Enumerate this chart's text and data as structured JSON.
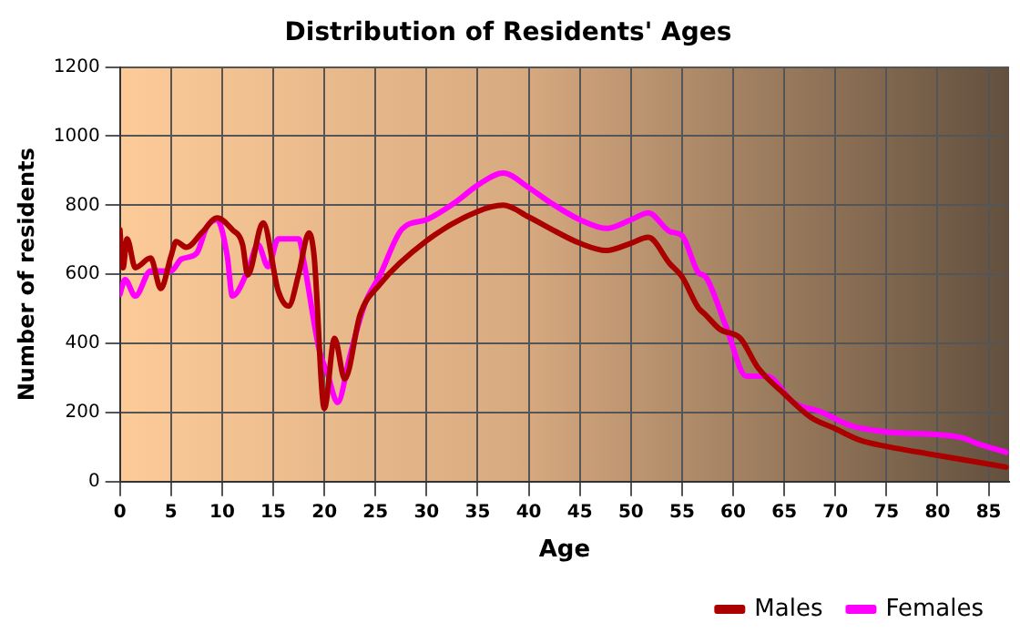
{
  "chart_data": {
    "type": "line",
    "title": "Distribution of Residents' Ages",
    "xlabel": "Age",
    "ylabel": "Number of residents",
    "xlim": [
      0,
      87
    ],
    "xticks": [
      0,
      5,
      10,
      15,
      20,
      25,
      30,
      35,
      40,
      45,
      50,
      55,
      60,
      65,
      70,
      75,
      80,
      85
    ],
    "ylim": [
      0,
      1200
    ],
    "yticks": [
      0,
      200,
      400,
      600,
      800,
      1000,
      1200
    ],
    "grid": true,
    "legend": "bottom right",
    "marker": "none",
    "line_style": "solid",
    "series": [
      {
        "name": "Males",
        "color": "#aa0000",
        "x": [
          0,
          0.3,
          0.7,
          1.5,
          3,
          4,
          5,
          5.5,
          6.5,
          8,
          9.5,
          11,
          12,
          12.5,
          14,
          15.5,
          16.5,
          17.5,
          18.5,
          19,
          20,
          21,
          22,
          23.5,
          25.4,
          30,
          35,
          37.5,
          40,
          42.7,
          45,
          47.6,
          50,
          51.7,
          53.8,
          55,
          56.6,
          57.3,
          58.7,
          60.7,
          62.4,
          65,
          67.6,
          70,
          72.5,
          75,
          80,
          86.7
        ],
        "values": [
          729,
          619,
          703,
          619,
          647,
          559,
          653,
          695,
          678,
          720,
          763,
          729,
          686,
          598,
          749,
          551,
          508,
          602,
          720,
          653,
          212,
          415,
          297,
          483,
          570,
          697,
          782,
          800,
          766,
          723,
          690,
          669,
          690,
          707,
          631,
          593,
          503,
          483,
          441,
          415,
          331,
          254,
          186,
          153,
          119,
          102,
          76,
          42
        ]
      },
      {
        "name": "Females",
        "color": "#ff00ff",
        "x": [
          0,
          0.5,
          1.5,
          3,
          5,
          6,
          7.5,
          8.5,
          9.5,
          10.5,
          11,
          12.5,
          13.5,
          14.5,
          15.5,
          17.5,
          18,
          19.5,
          20.3,
          21.3,
          22.5,
          24,
          25.4,
          27.6,
          30,
          32.8,
          35,
          37.5,
          40,
          42.1,
          45,
          47.6,
          50,
          51.7,
          53.8,
          55,
          56.6,
          57.3,
          59.3,
          61.3,
          63.3,
          65.9,
          68.5,
          71.6,
          75,
          80,
          82.4,
          83.9,
          86.7
        ],
        "values": [
          542,
          585,
          537,
          610,
          610,
          644,
          661,
          737,
          758,
          653,
          537,
          610,
          686,
          622,
          703,
          703,
          636,
          381,
          314,
          229,
          364,
          517,
          595,
          731,
          758,
          808,
          858,
          893,
          851,
          808,
          758,
          733,
          758,
          778,
          724,
          712,
          605,
          593,
          449,
          305,
          305,
          229,
          203,
          161,
          144,
          136,
          127,
          110,
          85
        ]
      }
    ]
  }
}
